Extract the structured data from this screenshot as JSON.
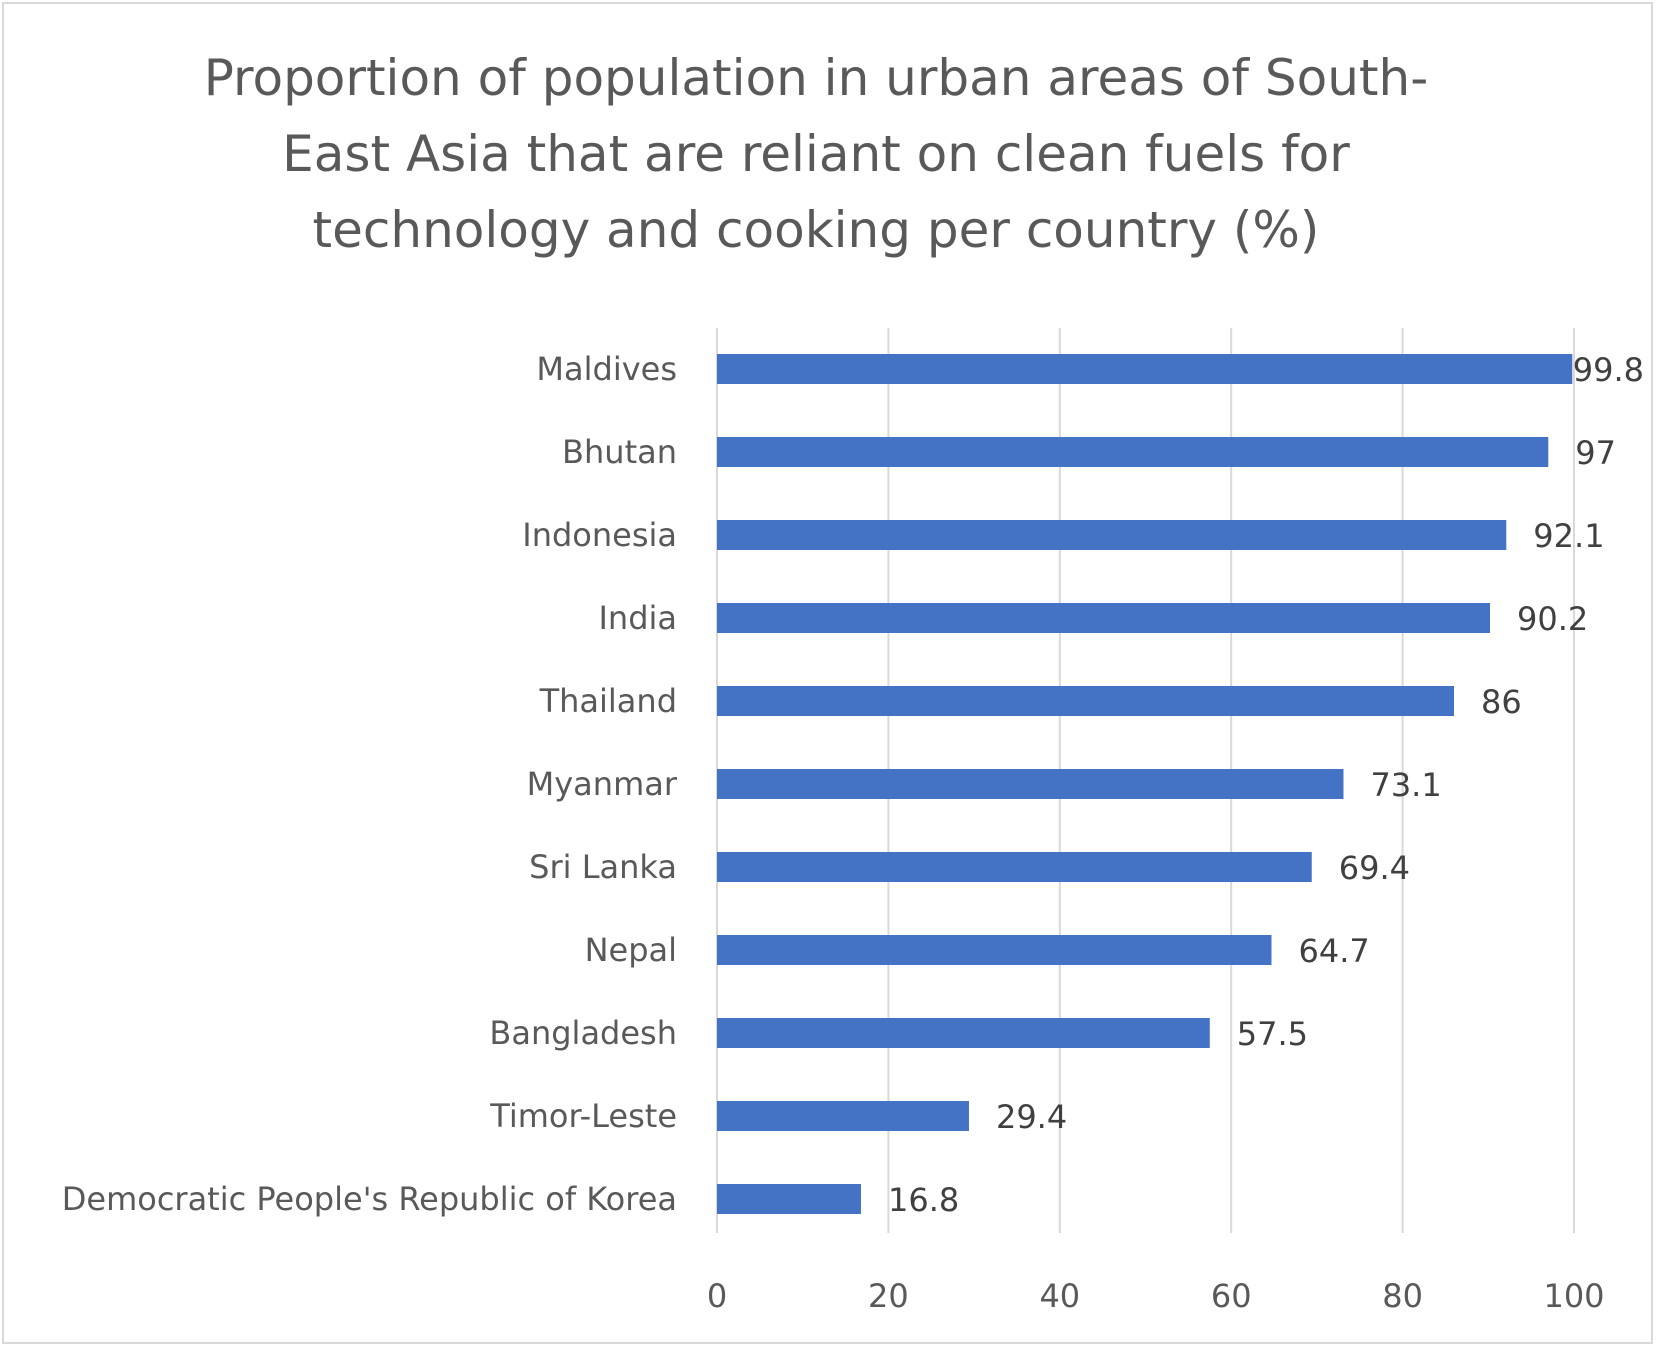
{
  "chart_data": {
    "type": "bar",
    "orientation": "horizontal",
    "title_lines": [
      "Proportion of population in urban areas of South-",
      "East Asia that are reliant on clean fuels for",
      "technology and cooking per country (%)"
    ],
    "categories": [
      "Maldives",
      "Bhutan",
      "Indonesia",
      "India",
      "Thailand",
      "Myanmar",
      "Sri Lanka",
      "Nepal",
      "Bangladesh",
      "Timor-Leste",
      "Democratic People's Republic of Korea"
    ],
    "values": [
      99.8,
      97,
      92.1,
      90.2,
      86,
      73.1,
      69.4,
      64.7,
      57.5,
      29.4,
      16.8
    ],
    "data_labels": [
      "99.8",
      "97",
      "92.1",
      "90.2",
      "86",
      "73.1",
      "69.4",
      "64.7",
      "57.5",
      "29.4",
      "16.8"
    ],
    "xlim": [
      0,
      100
    ],
    "x_ticks": [
      "0",
      "20",
      "40",
      "60",
      "80",
      "100"
    ],
    "xlabel": "",
    "ylabel": "",
    "grid": "vertical",
    "legend": "none",
    "bar_color": "#4472c4",
    "grid_color": "#d9d9d9"
  }
}
